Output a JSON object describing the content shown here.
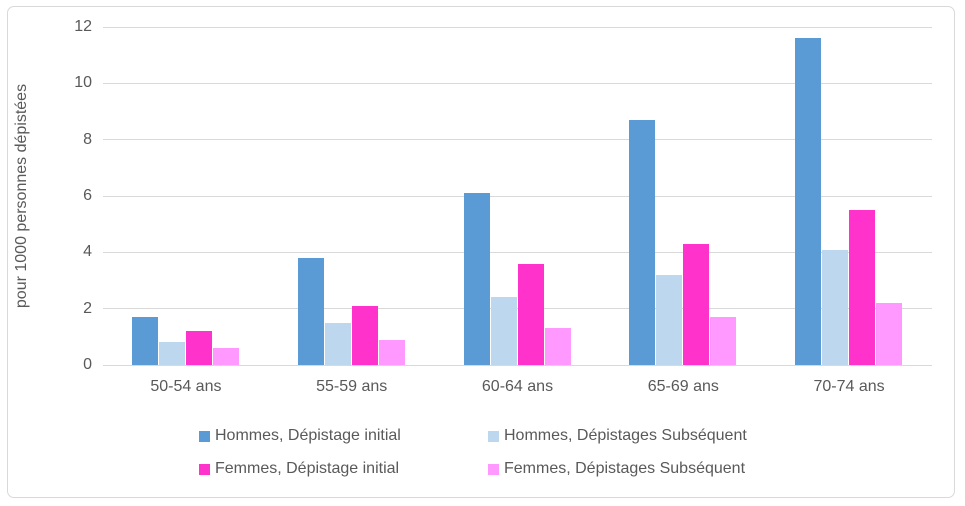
{
  "chart_data": {
    "type": "bar",
    "categories": [
      "50-54 ans",
      "55-59 ans",
      "60-64 ans",
      "65-69 ans",
      "70-74 ans"
    ],
    "series": [
      {
        "name": "Hommes, Dépistage initial",
        "color": "#5B9BD5",
        "values": [
          1.7,
          3.8,
          6.1,
          8.7,
          11.6
        ]
      },
      {
        "name": "Hommes, Dépistages Subséquent",
        "color": "#BDD7EE",
        "values": [
          0.8,
          1.5,
          2.4,
          3.2,
          4.1
        ]
      },
      {
        "name": "Femmes, Dépistage initial",
        "color": "#FF33CC",
        "values": [
          1.2,
          2.1,
          3.6,
          4.3,
          5.5
        ]
      },
      {
        "name": "Femmes, Dépistages Subséquent",
        "color": "#FF99FF",
        "values": [
          0.6,
          0.9,
          1.3,
          1.7,
          2.2
        ]
      }
    ],
    "title": "",
    "xlabel": "",
    "ylabel": "pour 1000 personnes dépistées",
    "ylim": [
      0,
      12
    ],
    "yticks": [
      0,
      2,
      4,
      6,
      8,
      10,
      12
    ],
    "grid": true,
    "legend_position": "bottom",
    "colors": {
      "gridline": "#d9d9d9",
      "axis_text": "#595959",
      "chart_border": "#d9d9d9",
      "background": "#ffffff"
    }
  }
}
